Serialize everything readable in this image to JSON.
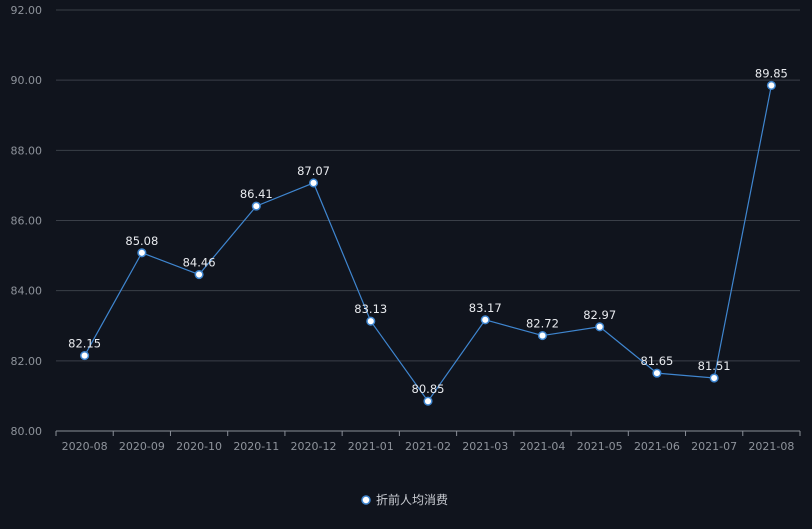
{
  "chart_data": {
    "type": "line",
    "title": "",
    "xlabel": "",
    "ylabel": "",
    "ylim": [
      80,
      92
    ],
    "yticks": [
      "80.00",
      "82.00",
      "84.00",
      "86.00",
      "88.00",
      "90.00",
      "92.00"
    ],
    "grid": true,
    "legend_position": "bottom-center",
    "categories": [
      "2020-08",
      "2020-09",
      "2020-10",
      "2020-11",
      "2020-12",
      "2021-01",
      "2021-02",
      "2021-03",
      "2021-04",
      "2021-05",
      "2021-06",
      "2021-07",
      "2021-08"
    ],
    "series": [
      {
        "name": "折前人均消费",
        "color": "#3f86d0",
        "values": [
          82.15,
          85.08,
          84.46,
          86.41,
          87.07,
          83.13,
          80.85,
          83.17,
          82.72,
          82.97,
          81.65,
          81.51,
          89.85
        ],
        "labels": [
          "82.15",
          "85.08",
          "84.46",
          "86.41",
          "87.07",
          "83.13",
          "80.85",
          "83.17",
          "82.72",
          "82.97",
          "81.65",
          "81.51",
          "89.85"
        ]
      }
    ]
  }
}
